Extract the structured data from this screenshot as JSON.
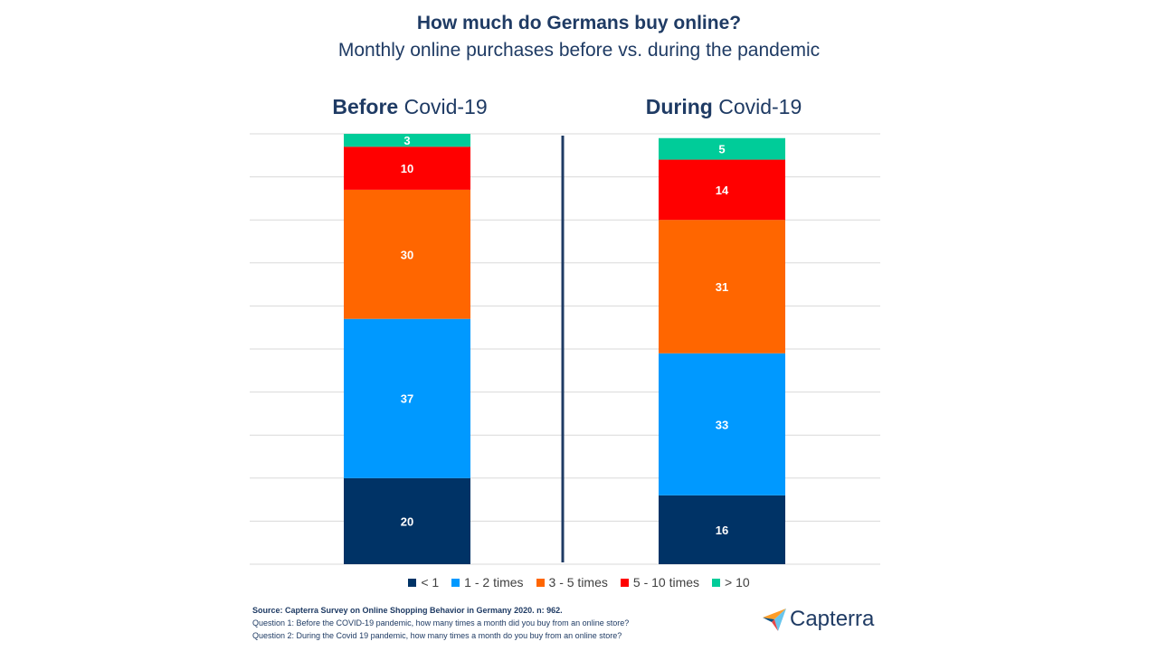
{
  "title": "How much do Germans buy online?",
  "subtitle": "Monthly online purchases before vs. during the pandemic",
  "columns": [
    {
      "bold": "Before",
      "rest": " Covid-19"
    },
    {
      "bold": "During",
      "rest": " Covid-19"
    }
  ],
  "chart_data": {
    "type": "bar",
    "stacked": true,
    "categories": [
      "Before Covid-19",
      "During Covid-19"
    ],
    "series": [
      {
        "name": "< 1",
        "values": [
          20,
          16
        ],
        "color": "#003366"
      },
      {
        "name": "1 - 2 times",
        "values": [
          37,
          33
        ],
        "color": "#0099ff"
      },
      {
        "name": "3 - 5 times",
        "values": [
          30,
          31
        ],
        "color": "#ff6600"
      },
      {
        "name": "5 - 10 times",
        "values": [
          10,
          14
        ],
        "color": "#ff0000"
      },
      {
        "name": "> 10",
        "values": [
          3,
          5
        ],
        "color": "#00cc99"
      }
    ],
    "ylim": [
      0,
      100
    ],
    "grid": true,
    "legend": "bottom"
  },
  "source": {
    "line1": "Source: Capterra Survey on Online Shopping Behavior in Germany 2020. n: 962.",
    "line2": "Question 1: Before the COVID-19 pandemic, how many times a month did you buy from an online store?",
    "line3": "Question 2: During the Covid 19 pandemic, how many times a month do you buy from an online store?"
  },
  "logo": {
    "text": "Capterra",
    "icon": "capterra-arrow-icon"
  }
}
